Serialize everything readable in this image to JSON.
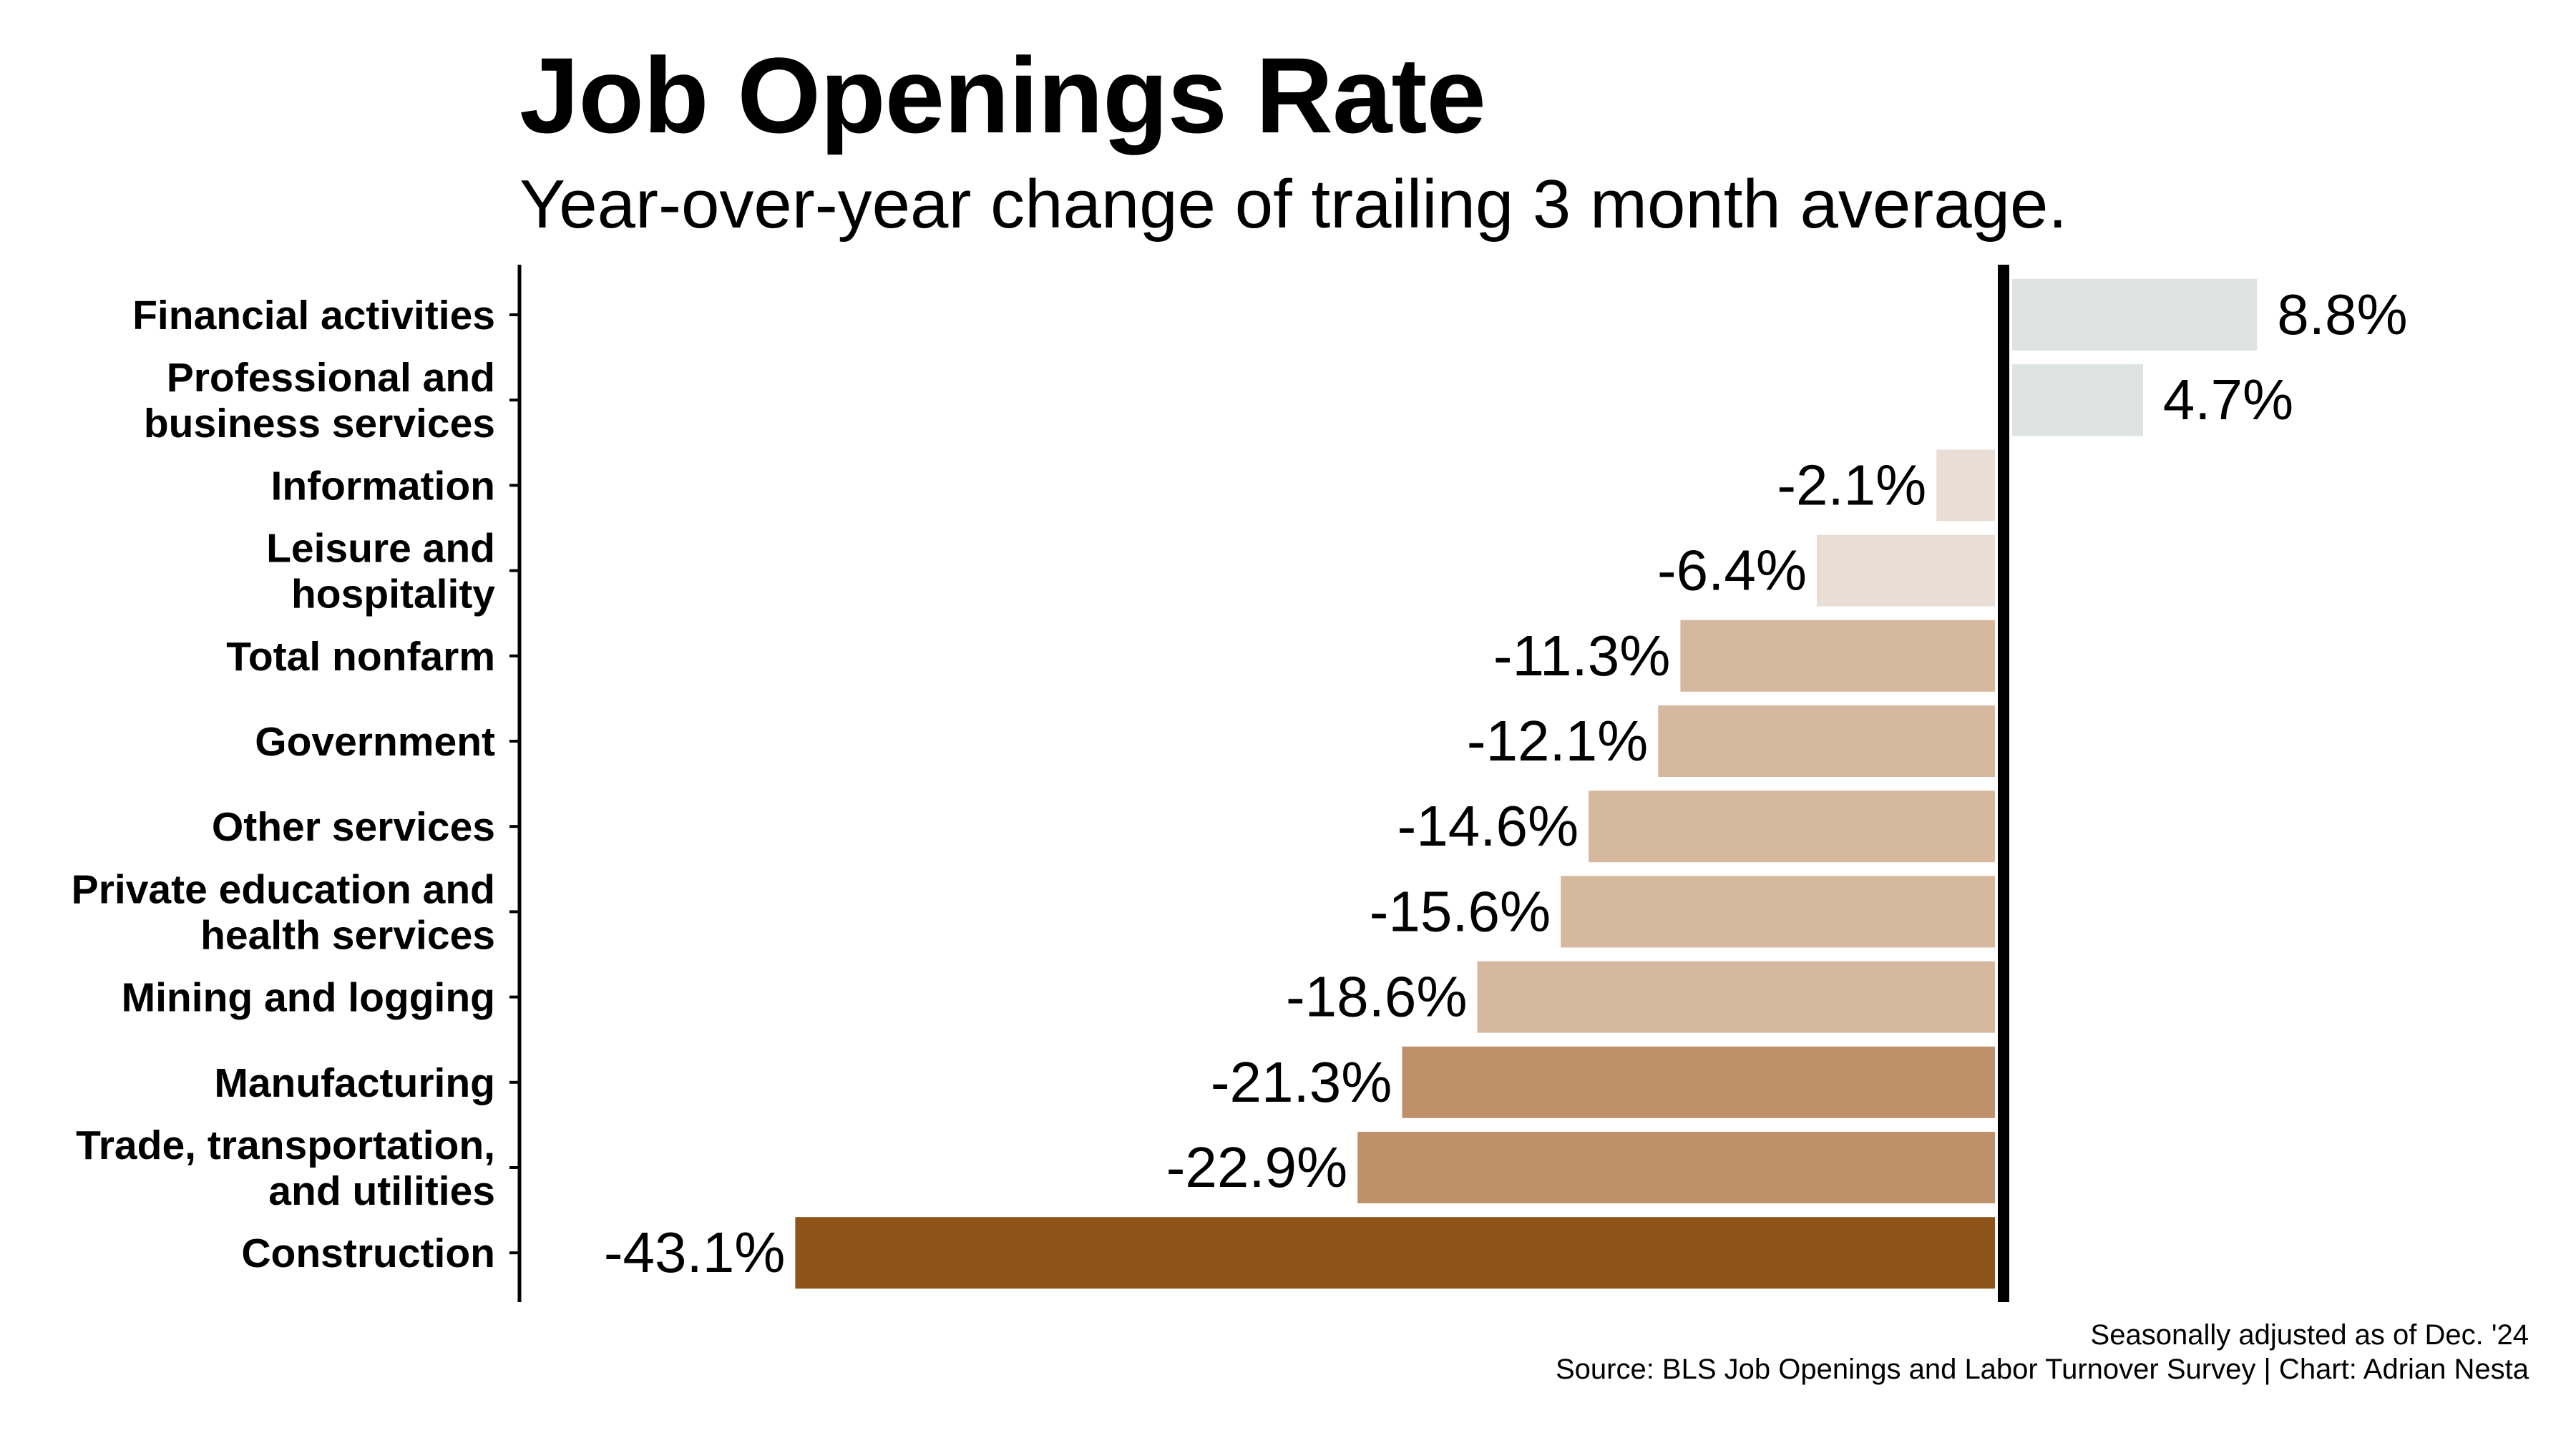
{
  "chart_data": {
    "type": "bar",
    "orientation": "horizontal",
    "title": "Job Openings Rate",
    "subtitle": "Year-over-year change of trailing 3 month average.",
    "categories": [
      [
        "Financial activities"
      ],
      [
        "Professional and",
        "business services"
      ],
      [
        "Information"
      ],
      [
        "Leisure and",
        "hospitality"
      ],
      [
        "Total nonfarm"
      ],
      [
        "Government"
      ],
      [
        "Other services"
      ],
      [
        "Private education and",
        "health services"
      ],
      [
        "Mining and logging"
      ],
      [
        "Manufacturing"
      ],
      [
        "Trade, transportation,",
        "and utilities"
      ],
      [
        "Construction"
      ]
    ],
    "values": [
      8.8,
      4.7,
      -2.1,
      -6.4,
      -11.3,
      -12.1,
      -14.6,
      -15.6,
      -18.6,
      -21.3,
      -22.9,
      -43.1
    ],
    "value_labels": [
      "8.8%",
      "4.7%",
      "-2.1%",
      "-6.4%",
      "-11.3%",
      "-12.1%",
      "-14.6%",
      "-15.6%",
      "-18.6%",
      "-21.3%",
      "-22.9%",
      "-43.1%"
    ],
    "bar_colors": [
      "#dee3e1",
      "#dee3e1",
      "#e9ded6",
      "#e9ded6",
      "#d6b89e",
      "#d6b89e",
      "#d6b89e",
      "#d6b89e",
      "#d6b89e",
      "#bf916b",
      "#bf916b",
      "#8d5318"
    ],
    "xlim": [
      -50,
      10
    ],
    "grid": false,
    "legend": "none",
    "note": "Seasonally adjusted as of Dec. '24",
    "source": "Source: BLS Job Openings and Labor Turnover Survey | Chart: Adrian Nesta"
  }
}
